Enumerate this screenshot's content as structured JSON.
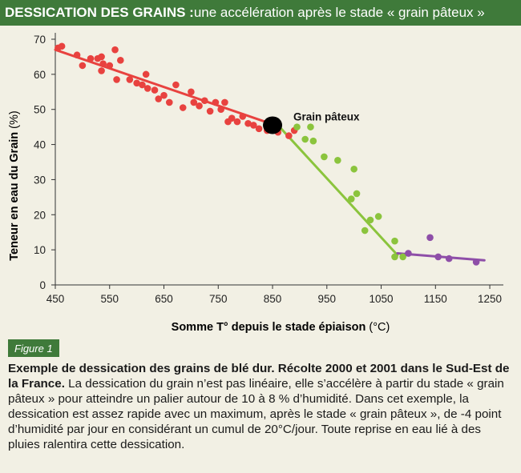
{
  "header": {
    "title_bold": "DESSICATION DES GRAINS :",
    "title_rest": " une accélération après le stade « grain pâteux »"
  },
  "figure_label": "Figure 1",
  "caption": {
    "bold": "Exemple de dessication des grains de blé dur. Récolte 2000 et 2001 dans le Sud-Est de la France.",
    "text": " La dessication du grain n’est pas linéaire, elle s’accélère à partir du stade « grain pâteux » pour atteindre un palier autour de 10 à 8 % d’humidité. Dans cet exemple, la dessication est assez rapide avec un maximum, après le stade « grain pâteux », de -4 point d’humidité par jour en considérant un cumul de 20°C/jour. Toute reprise en eau lié à des pluies ralentira cette dessication."
  },
  "chart_data": {
    "type": "scatter",
    "xlabel_bold": "Somme  T° depuis le stade épiaison",
    "xlabel_unit": " (°C)",
    "ylabel_bold": "Teneur en eau du Grain",
    "ylabel_unit": " (%)",
    "xlim": [
      450,
      1275
    ],
    "ylim": [
      0,
      70
    ],
    "x_ticks": [
      "450",
      "550",
      "650",
      "750",
      "850",
      "950",
      "1050",
      "1150",
      "1250"
    ],
    "y_ticks": [
      "0",
      "10",
      "20",
      "30",
      "40",
      "50",
      "60",
      "70"
    ],
    "grid": false,
    "annotation": {
      "label": "Grain pâteux",
      "x": 850,
      "y": 45.5,
      "color": "#000000"
    },
    "series": [
      {
        "color": "#e8423f",
        "points": [
          [
            455,
            67.5
          ],
          [
            462,
            68
          ],
          [
            490,
            65.5
          ],
          [
            500,
            62.5
          ],
          [
            515,
            64.5
          ],
          [
            528,
            64.5
          ],
          [
            535,
            65
          ],
          [
            538,
            63
          ],
          [
            535,
            61
          ],
          [
            550,
            62.5
          ],
          [
            560,
            67
          ],
          [
            563,
            58.5
          ],
          [
            570,
            64
          ],
          [
            587,
            58.5
          ],
          [
            600,
            57.5
          ],
          [
            610,
            57
          ],
          [
            617,
            60
          ],
          [
            620,
            56
          ],
          [
            633,
            55.5
          ],
          [
            640,
            53
          ],
          [
            650,
            54
          ],
          [
            660,
            52
          ],
          [
            672,
            57
          ],
          [
            685,
            50.5
          ],
          [
            700,
            55
          ],
          [
            705,
            52
          ],
          [
            715,
            51
          ],
          [
            725,
            52.5
          ],
          [
            735,
            49.5
          ],
          [
            745,
            52
          ],
          [
            755,
            50
          ],
          [
            762,
            52
          ],
          [
            768,
            46.5
          ],
          [
            775,
            47.5
          ],
          [
            785,
            46.5
          ],
          [
            795,
            48
          ],
          [
            805,
            46
          ],
          [
            815,
            45.5
          ],
          [
            825,
            44.5
          ],
          [
            840,
            44
          ],
          [
            860,
            43.5
          ],
          [
            880,
            42.5
          ],
          [
            890,
            44
          ]
        ],
        "trend": [
          [
            450,
            67
          ],
          [
            855,
            45.5
          ]
        ]
      },
      {
        "color": "#8bc43d",
        "points": [
          [
            895,
            45
          ],
          [
            910,
            41.5
          ],
          [
            920,
            45
          ],
          [
            925,
            41
          ],
          [
            945,
            36.5
          ],
          [
            970,
            35.5
          ],
          [
            995,
            24.5
          ],
          [
            1000,
            33
          ],
          [
            1005,
            26
          ],
          [
            1020,
            15.5
          ],
          [
            1030,
            18.5
          ],
          [
            1045,
            19.5
          ],
          [
            1075,
            12.5
          ],
          [
            1075,
            8
          ],
          [
            1090,
            8
          ]
        ],
        "trend": [
          [
            860,
            45.5
          ],
          [
            1080,
            8.5
          ]
        ]
      },
      {
        "color": "#8e4ea8",
        "points": [
          [
            1100,
            9
          ],
          [
            1140,
            13.5
          ],
          [
            1155,
            8
          ],
          [
            1175,
            7.5
          ],
          [
            1225,
            6.5
          ]
        ],
        "trend": [
          [
            1080,
            9
          ],
          [
            1240,
            7
          ]
        ]
      }
    ]
  }
}
